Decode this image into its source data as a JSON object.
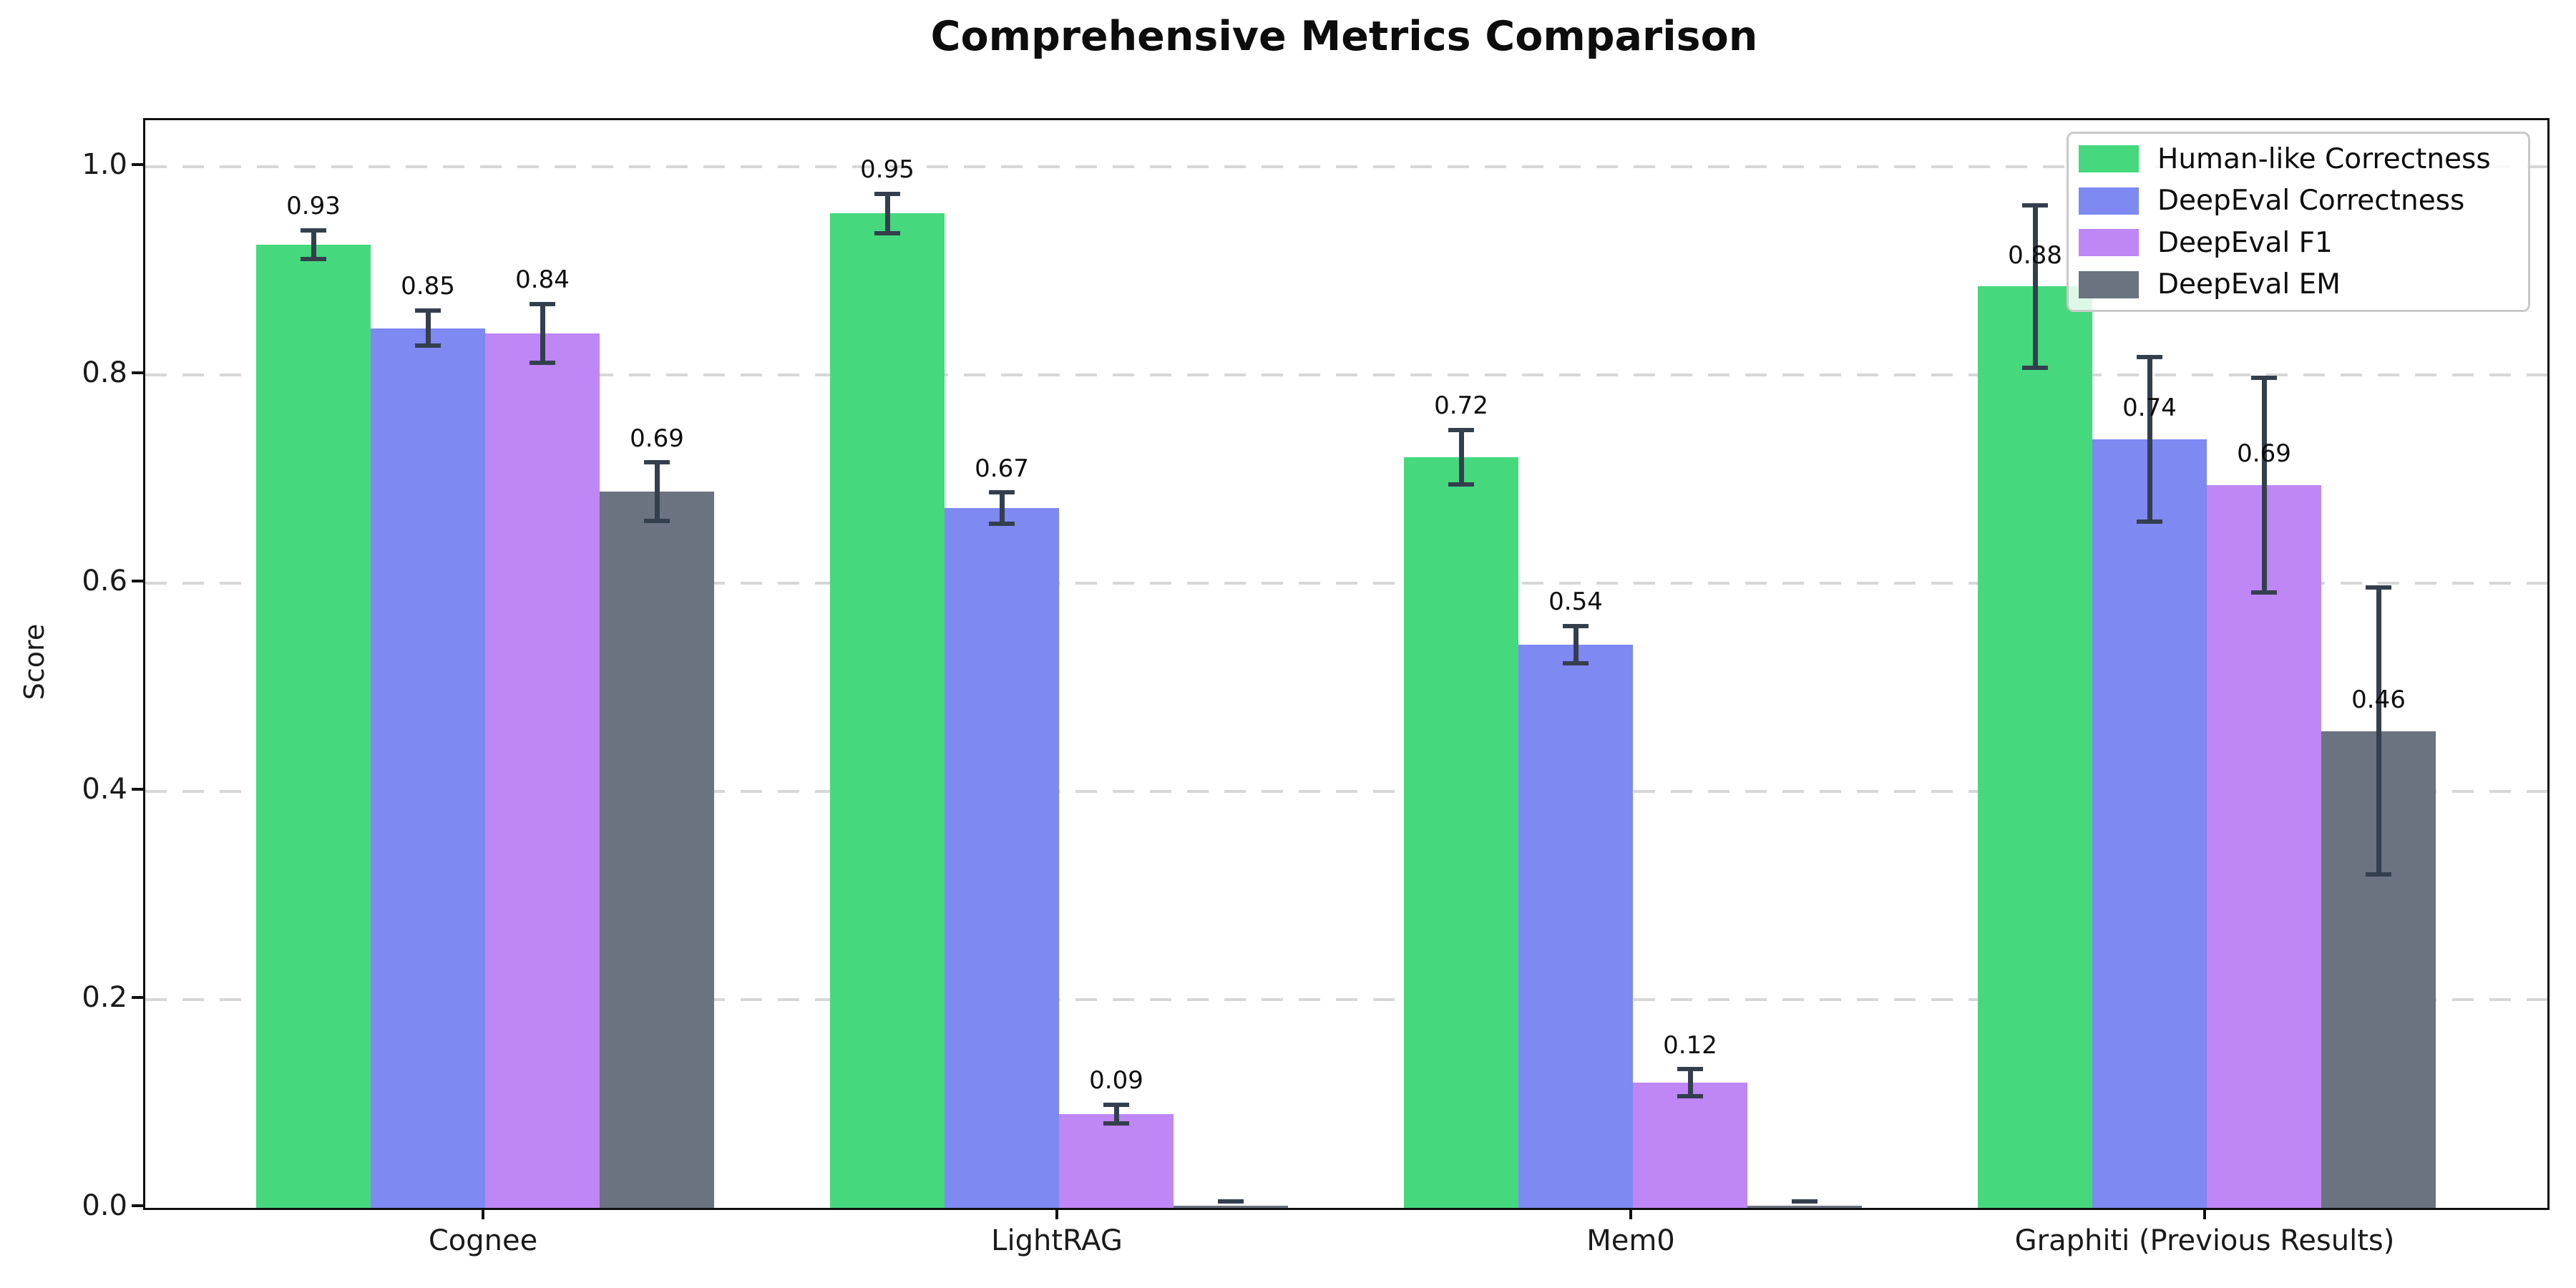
{
  "title": "Comprehensive Metrics Comparison",
  "ylabel": "Score",
  "legend": {
    "position": "upper right",
    "entries": [
      "Human-like Correctness",
      "DeepEval Correctness",
      "DeepEval F1",
      "DeepEval EM"
    ]
  },
  "chart_data": {
    "type": "bar",
    "title": "Comprehensive Metrics Comparison",
    "xlabel": "",
    "ylabel": "Score",
    "categories": [
      "Cognee",
      "LightRAG",
      "Mem0",
      "Graphiti (Previous Results)"
    ],
    "series": [
      {
        "name": "Human-like Correctness",
        "color": "#45d87d",
        "values": [
          0.93,
          0.95,
          0.72,
          0.88
        ],
        "bar_heights": [
          0.925,
          0.955,
          0.721,
          0.885
        ],
        "errors": [
          0.014,
          0.019,
          0.026,
          0.078
        ],
        "labels": [
          "0.93",
          "0.95",
          "0.72",
          "0.88"
        ]
      },
      {
        "name": "DeepEval Correctness",
        "color": "#7e89f2",
        "values": [
          0.85,
          0.67,
          0.54,
          0.74
        ],
        "bar_heights": [
          0.845,
          0.672,
          0.541,
          0.738
        ],
        "errors": [
          0.017,
          0.015,
          0.018,
          0.079
        ],
        "labels": [
          "0.85",
          "0.67",
          "0.54",
          "0.74"
        ]
      },
      {
        "name": "DeepEval F1",
        "color": "#bf86f5",
        "values": [
          0.84,
          0.09,
          0.12,
          0.69
        ],
        "bar_heights": [
          0.84,
          0.09,
          0.12,
          0.694
        ],
        "errors": [
          0.028,
          0.009,
          0.013,
          0.103
        ],
        "labels": [
          "0.84",
          "0.09",
          "0.12",
          "0.69"
        ]
      },
      {
        "name": "DeepEval EM",
        "color": "#6b7280",
        "values": [
          0.69,
          0.0,
          0.0,
          0.46
        ],
        "bar_heights": [
          0.688,
          0.002,
          0.002,
          0.458
        ],
        "errors": [
          0.028,
          0.004,
          0.004,
          0.138
        ],
        "labels": [
          "0.69",
          "",
          "",
          "0.46"
        ]
      }
    ],
    "yticks": [
      {
        "v": 0.0,
        "label": "0.0"
      },
      {
        "v": 0.2,
        "label": "0.2"
      },
      {
        "v": 0.4,
        "label": "0.4"
      },
      {
        "v": 0.6,
        "label": "0.6"
      },
      {
        "v": 0.8,
        "label": "0.8"
      },
      {
        "v": 1.0,
        "label": "1.0"
      }
    ],
    "ylim": [
      0,
      1.045
    ],
    "grid": "horizontal-dashed",
    "legend_position": "upper right",
    "error_bar_color": "#343f4e"
  }
}
